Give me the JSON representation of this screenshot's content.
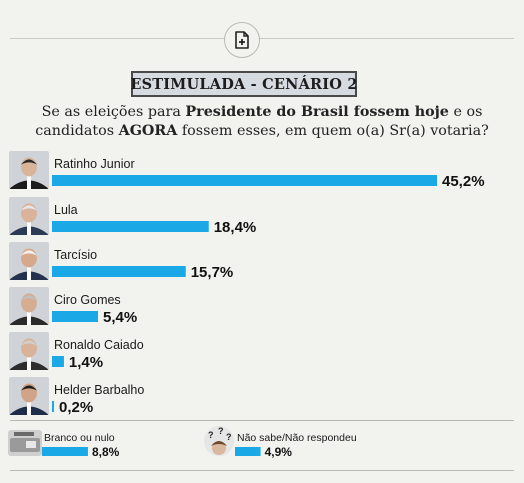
{
  "header": {
    "title": "ESTIMULADA - CENÁRIO 2",
    "icon": "document-plus-icon"
  },
  "question": {
    "part1": "Se as eleições para ",
    "bold1": "Presidente do Brasil fossem hoje",
    "part2": " e os candidatos ",
    "bold2": "AGORA",
    "part3": " fossem esses, em quem o(a) Sr(a) votaria?"
  },
  "colors": {
    "bar": "#1aa9e6",
    "accent": "#1aa9e6"
  },
  "chart_data": {
    "type": "bar",
    "orientation": "horizontal",
    "unit": "%",
    "xlim": [
      0,
      45.2
    ],
    "categories": [
      "Ratinho Junior",
      "Lula",
      "Tarcísio",
      "Ciro Gomes",
      "Ronaldo Caiado",
      "Helder Barbalho",
      "Branco ou nulo",
      "Não sabe/Não respondeu"
    ],
    "values": [
      45.2,
      18.4,
      15.7,
      5.4,
      1.4,
      0.2,
      8.8,
      4.9
    ],
    "value_labels": [
      "45,2%",
      "18,4%",
      "15,7%",
      "5,4%",
      "1,4%",
      "0,2%",
      "8,8%",
      "4,9%"
    ],
    "grid": false,
    "legend": "none"
  }
}
